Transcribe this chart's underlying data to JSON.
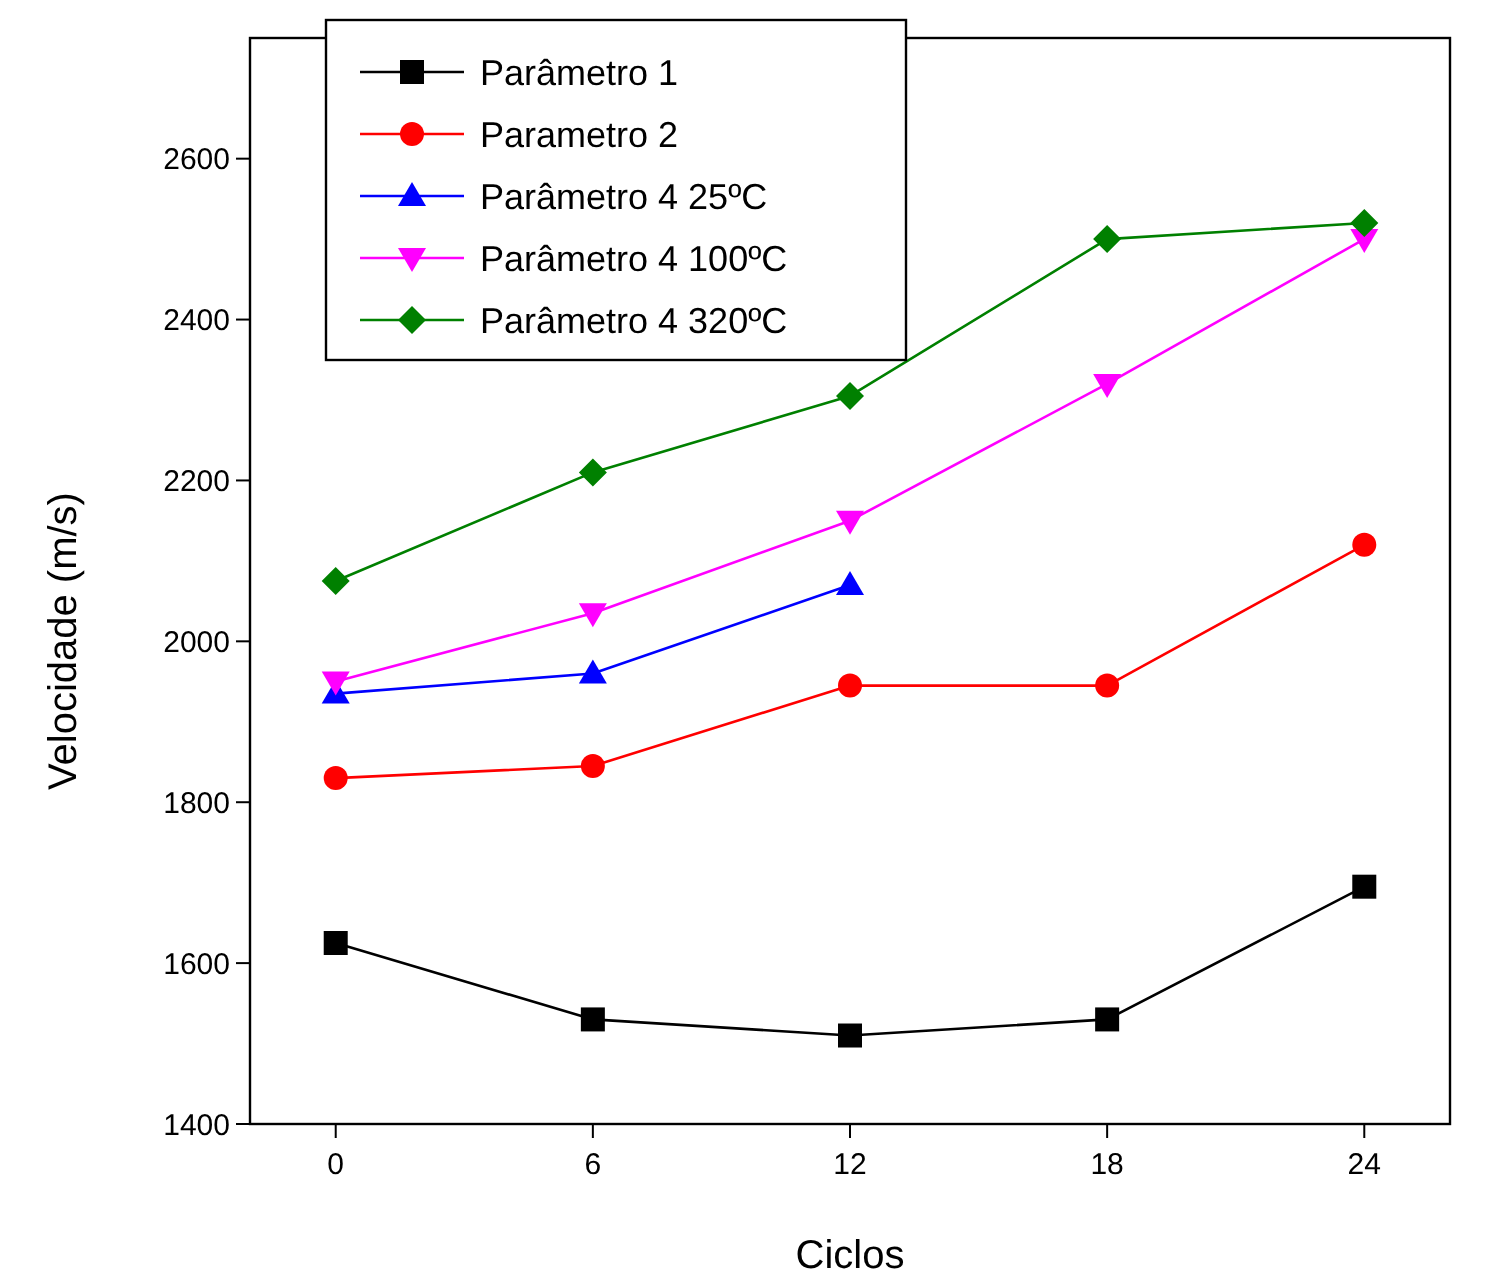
{
  "chart_data": {
    "type": "line",
    "xlabel": "Ciclos",
    "ylabel": "Velocidade (m/s)",
    "x": [
      0,
      6,
      12,
      18,
      24
    ],
    "xlim": [
      -2,
      26
    ],
    "xticks": [
      0,
      6,
      12,
      18,
      24
    ],
    "ylim": [
      1400,
      2750
    ],
    "yticks": [
      1400,
      1600,
      1800,
      2000,
      2200,
      2400,
      2600
    ],
    "grid": false,
    "legend": "top left",
    "series": [
      {
        "name": "Parâmetro 1",
        "color": "#000000",
        "marker": "square",
        "values": [
          1625,
          1530,
          1510,
          1530,
          1695
        ]
      },
      {
        "name": "Parametro 2",
        "color": "#ff0000",
        "marker": "circle",
        "values": [
          1830,
          1845,
          1945,
          1945,
          2120
        ]
      },
      {
        "name": "Parâmetro 4 25ºC",
        "color": "#0000ff",
        "marker": "triangle",
        "values": [
          1935,
          1960,
          2070,
          null,
          null
        ]
      },
      {
        "name": "Parâmetro 4 100ºC",
        "color": "#ff00ff",
        "marker": "triangle-down",
        "values": [
          1950,
          2035,
          2150,
          2320,
          2500
        ]
      },
      {
        "name": "Parâmetro 4 320ºC",
        "color": "#008000",
        "marker": "diamond",
        "values": [
          2075,
          2210,
          2305,
          2500,
          2520
        ]
      }
    ]
  }
}
